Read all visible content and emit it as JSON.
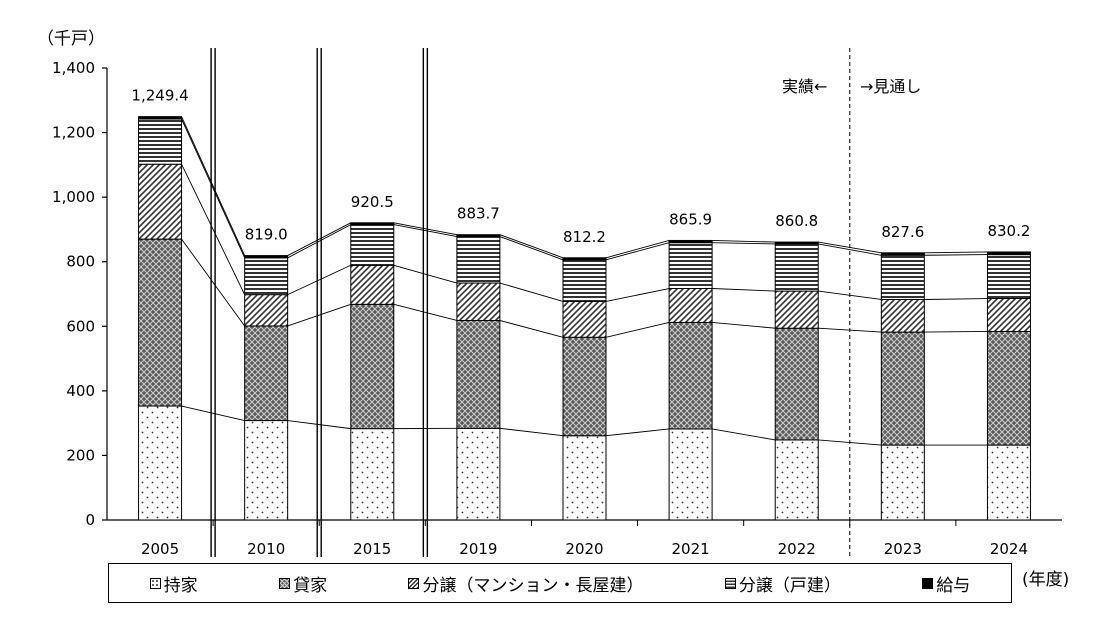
{
  "chart_data": {
    "type": "bar",
    "stacked": true,
    "y_unit": "（千戸）",
    "x_unit": "(年度)",
    "categories": [
      "2005",
      "2010",
      "2015",
      "2019",
      "2020",
      "2021",
      "2022",
      "2023",
      "2024"
    ],
    "totals": [
      "1,249.4",
      "819.0",
      "920.5",
      "883.7",
      "812.2",
      "865.9",
      "860.8",
      "827.6",
      "830.2"
    ],
    "total_values": [
      1249.4,
      819.0,
      920.5,
      883.7,
      812.2,
      865.9,
      860.8,
      827.6,
      830.2
    ],
    "series": [
      {
        "name": "持家",
        "pattern": "dots",
        "values": [
          353,
          308,
          283,
          284,
          261,
          282,
          248,
          232,
          232
        ]
      },
      {
        "name": "貸家",
        "pattern": "crosshatch",
        "values": [
          517,
          293,
          385,
          334,
          305,
          330,
          346,
          350,
          352
        ]
      },
      {
        "name": "分譲（マンション・長屋建）",
        "pattern": "diagonal",
        "values": [
          232,
          97,
          121,
          116,
          111,
          105,
          115,
          101,
          102
        ]
      },
      {
        "name": "分譲（戸建）",
        "pattern": "horizontal",
        "values": [
          140,
          114,
          126,
          144,
          129,
          142,
          146,
          137,
          136
        ]
      },
      {
        "name": "給与",
        "pattern": "solid",
        "values": [
          7.4,
          7.0,
          5.5,
          5.7,
          6.2,
          6.9,
          5.8,
          7.6,
          8.2
        ]
      }
    ],
    "ylim": [
      0,
      1400
    ],
    "yticks": [
      "0",
      "200",
      "400",
      "600",
      "800",
      "1,000",
      "1,200",
      "1,400"
    ],
    "ytick_values": [
      0,
      200,
      400,
      600,
      800,
      1000,
      1200,
      1400
    ],
    "axis_breaks_after": [
      "2005",
      "2010",
      "2015"
    ],
    "forecast_divider_between": [
      "2022",
      "2023"
    ],
    "annotation_actual": "実績←",
    "annotation_forecast": "→見通し",
    "legend_position": "bottom"
  }
}
